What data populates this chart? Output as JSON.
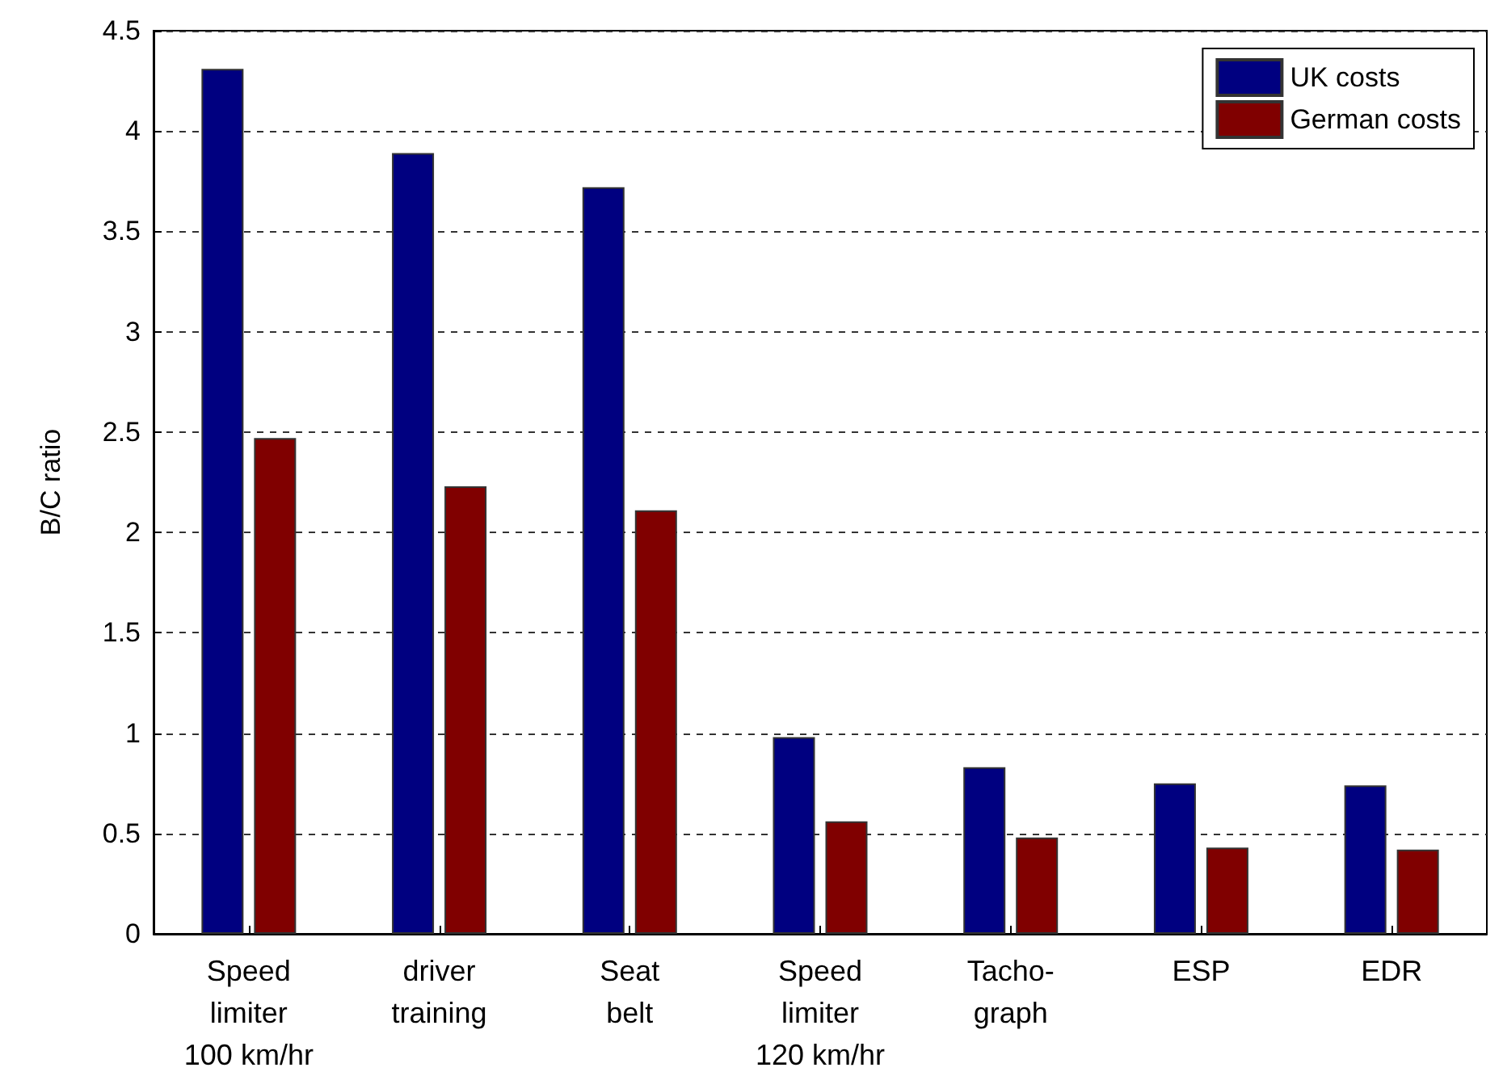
{
  "chart_data": {
    "type": "bar",
    "ylabel": "B/C ratio",
    "categories": [
      "Speed\nlimiter\n100 km/hr",
      "driver\ntraining",
      "Seat\nbelt",
      "Speed\nlimiter\n120 km/hr",
      "Tacho-\ngraph",
      "ESP",
      "EDR"
    ],
    "series": [
      {
        "name": "UK costs",
        "color": "#000080",
        "values": [
          4.31,
          3.89,
          3.72,
          0.98,
          0.83,
          0.75,
          0.74
        ]
      },
      {
        "name": "German costs",
        "color": "#800000",
        "values": [
          2.47,
          2.23,
          2.11,
          0.56,
          0.48,
          0.43,
          0.42
        ]
      }
    ],
    "ylim": [
      0,
      4.5
    ],
    "yticks": [
      0,
      0.5,
      1,
      1.5,
      2,
      2.5,
      3,
      3.5,
      4,
      4.5
    ],
    "grid": "y",
    "legend": "top right"
  }
}
